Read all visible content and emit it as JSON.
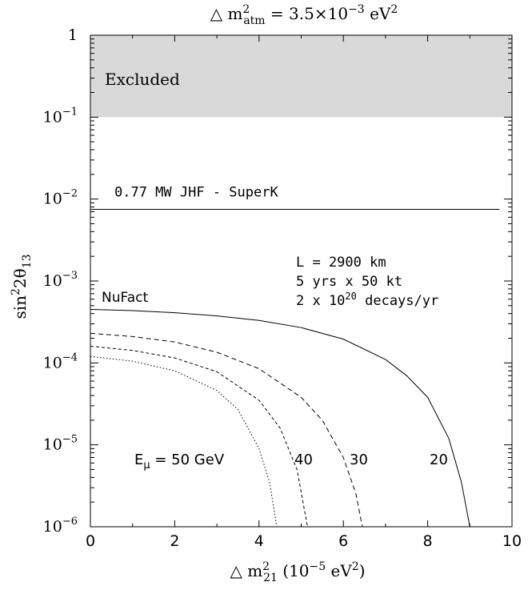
{
  "chart_data": {
    "type": "line",
    "title": {
      "prefix": "△ m",
      "sup": "2",
      "sub": "atm",
      "mid": " = 3.5×10",
      "exp": "−3",
      "unit": " eV",
      "unit_sup": "2"
    },
    "xlabel": {
      "prefix": "△ m",
      "sup": "2",
      "sub": "21",
      "unit_open": "  (10",
      "unit_exp": "−5",
      "unit_tail": " eV",
      "unit_sup": "2",
      "close": ")"
    },
    "ylabel": {
      "base": "sin",
      "sup": "2",
      "mid": "2θ",
      "sub": "13"
    },
    "x_range": [
      0,
      10
    ],
    "y_range": [
      1e-06,
      1
    ],
    "y_scale": "log",
    "x_ticks": [
      "0",
      "2",
      "4",
      "6",
      "8",
      "10"
    ],
    "x_tick_values": [
      0,
      2,
      4,
      6,
      8,
      10
    ],
    "y_ticks": [
      {
        "value": 1,
        "base": "1",
        "exp": ""
      },
      {
        "value": 0.1,
        "base": "10",
        "exp": "−1"
      },
      {
        "value": 0.01,
        "base": "10",
        "exp": "−2"
      },
      {
        "value": 0.001,
        "base": "10",
        "exp": "−3"
      },
      {
        "value": 0.0001,
        "base": "10",
        "exp": "−4"
      },
      {
        "value": 1e-05,
        "base": "10",
        "exp": "−5"
      },
      {
        "value": 1e-06,
        "base": "10",
        "exp": "−6"
      }
    ],
    "excluded_region": {
      "label": "Excluded",
      "y_from": 0.1,
      "y_to": 1,
      "color": "#d9d9d9"
    },
    "jhf_line": {
      "label": "0.77 MW  JHF - SuperK",
      "y": 0.0075
    },
    "info_lines": [
      "L = 2900 km",
      "5 yrs x 50 kt",
      "2 x 10",
      "20",
      " decays/yr"
    ],
    "nufact_label": "NuFact",
    "series": [
      {
        "label": "20",
        "style": "solid",
        "points": [
          [
            0,
            0.00045
          ],
          [
            1,
            0.000435
          ],
          [
            2,
            0.00041
          ],
          [
            3,
            0.000375
          ],
          [
            4,
            0.00033
          ],
          [
            5,
            0.00027
          ],
          [
            6,
            0.000195
          ],
          [
            7,
            0.00011
          ],
          [
            7.5,
            7e-05
          ],
          [
            8,
            3.8e-05
          ],
          [
            8.5,
            1.2e-05
          ],
          [
            8.8,
            3.5e-06
          ],
          [
            9,
            1e-06
          ]
        ]
      },
      {
        "label": "30",
        "style": "dashed",
        "points": [
          [
            0,
            0.00023
          ],
          [
            1,
            0.00021
          ],
          [
            2,
            0.00018
          ],
          [
            3,
            0.000135
          ],
          [
            4,
            8.5e-05
          ],
          [
            5,
            3.8e-05
          ],
          [
            5.5,
            2e-05
          ],
          [
            6,
            7e-06
          ],
          [
            6.3,
            2.5e-06
          ],
          [
            6.45,
            1e-06
          ]
        ]
      },
      {
        "label": "40",
        "style": "dashdot",
        "points": [
          [
            0,
            0.00016
          ],
          [
            1,
            0.000142
          ],
          [
            2,
            0.000115
          ],
          [
            3,
            7.8e-05
          ],
          [
            4,
            3.5e-05
          ],
          [
            4.5,
            1.6e-05
          ],
          [
            4.9,
            5e-06
          ],
          [
            5.15,
            1e-06
          ]
        ]
      },
      {
        "label": "E_μ = 50 GeV",
        "style": "dotted",
        "points": [
          [
            0,
            0.00012
          ],
          [
            1,
            0.000105
          ],
          [
            2,
            8e-05
          ],
          [
            3,
            4.6e-05
          ],
          [
            3.5,
            2.7e-05
          ],
          [
            4,
            9e-06
          ],
          [
            4.25,
            3.5e-06
          ],
          [
            4.42,
            1e-06
          ]
        ]
      }
    ],
    "curve_labels": {
      "e_prefix": "E",
      "e_sub": "μ",
      "e_tail": " = 50 GeV",
      "l40": "40",
      "l30": "30",
      "l20": "20"
    },
    "grid": false,
    "legend": "none"
  }
}
